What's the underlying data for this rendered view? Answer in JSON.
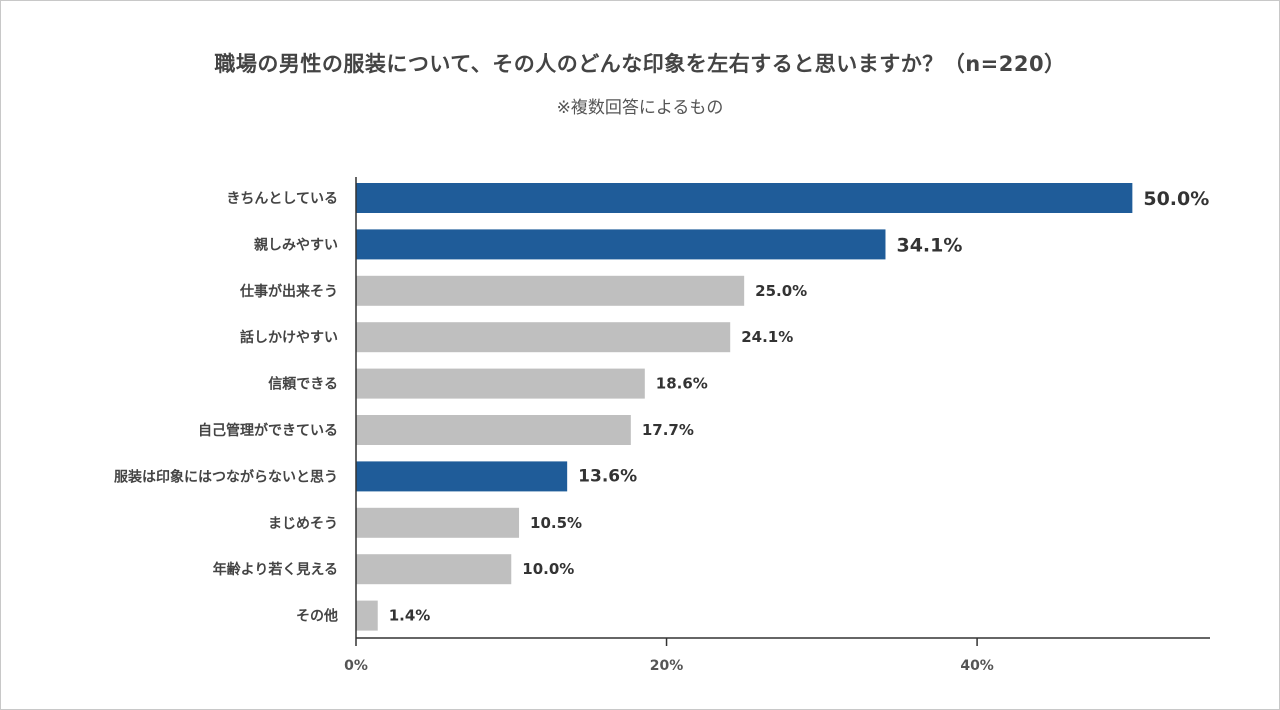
{
  "chart_data": {
    "type": "bar",
    "orientation": "horizontal",
    "title": "職場の男性の服装について、その人のどんな印象を左右すると思いますか？（n=220）",
    "subtitle": "※複数回答によるもの",
    "categories": [
      "きちんとしている",
      "親しみやすい",
      "仕事が出来そう",
      "話しかけやすい",
      "信頼できる",
      "自己管理ができている",
      "服装は印象にはつながらないと思う",
      "まじめそう",
      "年齢より若く見える",
      "その他"
    ],
    "values": [
      50.0,
      34.1,
      25.0,
      24.1,
      18.6,
      17.7,
      13.6,
      10.5,
      10.0,
      1.4
    ],
    "value_labels": [
      "50.0%",
      "34.1%",
      "25.0%",
      "24.1%",
      "18.6%",
      "17.7%",
      "13.6%",
      "10.5%",
      "10.0%",
      "1.4%"
    ],
    "highlighted": [
      true,
      true,
      false,
      false,
      false,
      false,
      true,
      false,
      false,
      false
    ],
    "xlim": [
      0,
      55
    ],
    "xticks": [
      0,
      20,
      40
    ],
    "xtick_labels": [
      "0%",
      "20%",
      "40%"
    ],
    "grid": false,
    "colors": {
      "highlight": "#1f5c99",
      "normal": "#bfbfbf",
      "axis": "#333333"
    }
  }
}
